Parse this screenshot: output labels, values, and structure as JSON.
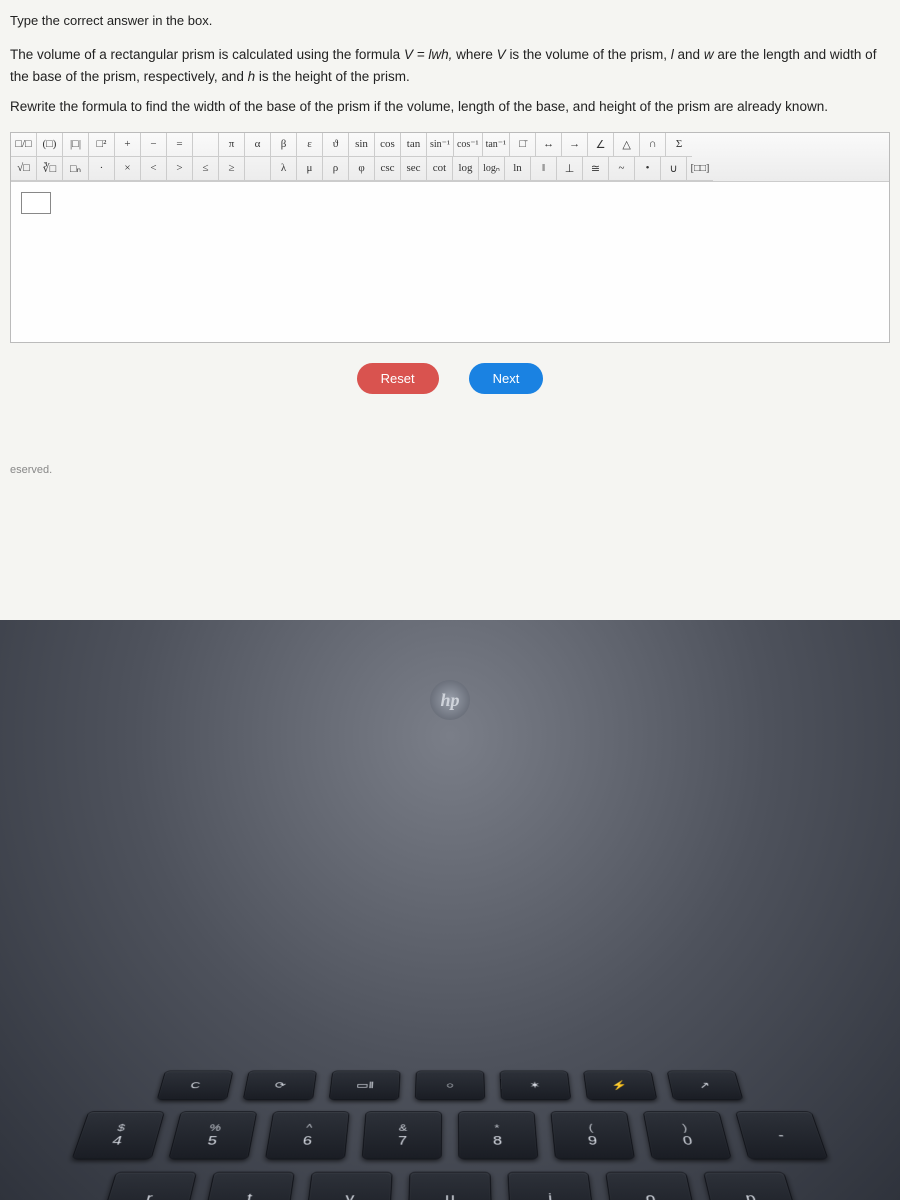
{
  "instruction": "Type the correct answer in the box.",
  "problem_line1_a": "The volume of a rectangular prism is calculated using the formula ",
  "problem_formula": "V = lwh,",
  "problem_line1_b": " where ",
  "var_V": "V",
  "problem_line1_c": " is the volume of the prism, ",
  "var_l": "l",
  "problem_line1_d": " and ",
  "var_w": "w",
  "problem_line1_e": " are the length and width of the base of the prism, respectively, and ",
  "var_h": "h",
  "problem_line1_f": " is the height of the prism.",
  "rewrite_text": "Rewrite the formula to find the width of the base of the prism if the volume, length of the base, and height of the prism are already known.",
  "toolbar": {
    "row1": [
      "□/□",
      "(□)",
      "|□|",
      "□²",
      "+",
      "−",
      "=",
      "",
      "π",
      "α",
      "β",
      "ε",
      "ϑ",
      "sin",
      "cos",
      "tan",
      "sin⁻¹",
      "cos⁻¹",
      "tan⁻¹",
      "□̄",
      "↔",
      "→",
      "∠",
      "△",
      "∩",
      "Σ"
    ],
    "row2": [
      "√□",
      "∛□",
      "□ₙ",
      "·",
      "×",
      "<",
      ">",
      "≤",
      "≥",
      "",
      "λ",
      "μ",
      "ρ",
      "φ",
      "csc",
      "sec",
      "cot",
      "log",
      "logₙ",
      "ln",
      "‖",
      "⊥",
      "≅",
      "~",
      "•",
      "∪",
      "[□□]"
    ]
  },
  "buttons": {
    "reset": "Reset",
    "next": "Next"
  },
  "footer": "eserved.",
  "logo": "hp",
  "keyboard": {
    "fn_row": [
      "C",
      "⟳",
      "▭‖",
      "○",
      "✶",
      "⚡",
      "↗"
    ],
    "num_row": [
      {
        "up": "$",
        "lo": "4"
      },
      {
        "up": "%",
        "lo": "5"
      },
      {
        "up": "^",
        "lo": "6"
      },
      {
        "up": "&",
        "lo": "7"
      },
      {
        "up": "*",
        "lo": "8"
      },
      {
        "up": "(",
        "lo": "9"
      },
      {
        "up": ")",
        "lo": "0"
      },
      {
        "up": "",
        "lo": "-"
      }
    ],
    "letter_row": [
      "r",
      "t",
      "y",
      "u",
      "i",
      "o",
      "p"
    ]
  },
  "colors": {
    "page_bg": "#f5f5f2",
    "reset_btn": "#d9534f",
    "next_btn": "#1a82e2",
    "photo_dark": "#2f333c",
    "key_text": "#d9dde5"
  }
}
